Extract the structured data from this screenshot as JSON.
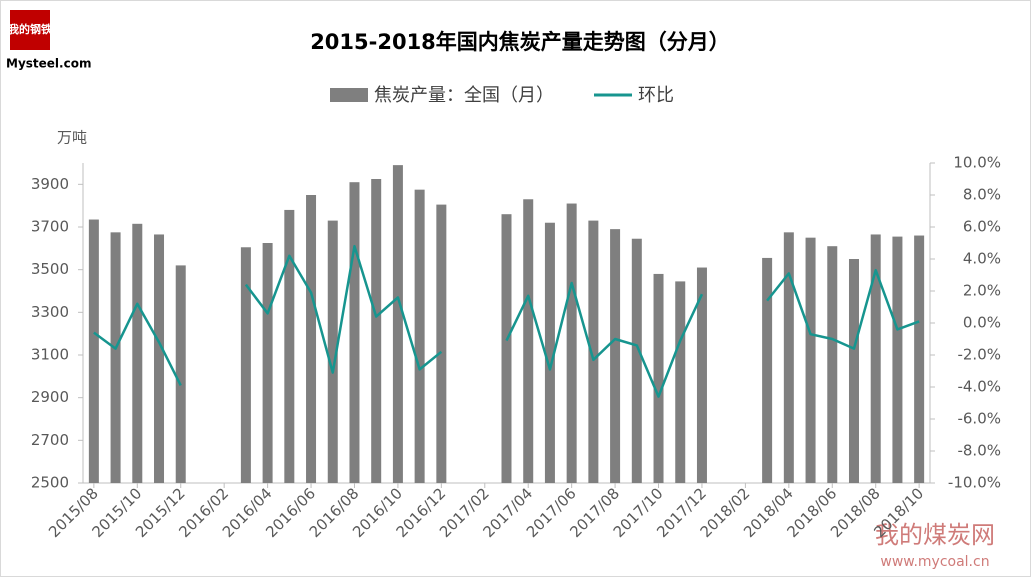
{
  "chart_data": {
    "type": "bar-line",
    "title": "2015-2018年国内焦炭产量走势图（分月）",
    "y_label": "万吨",
    "categories": [
      "2015/08",
      null,
      "2015/10",
      null,
      "2015/12",
      null,
      "2016/02",
      null,
      "2016/04",
      null,
      "2016/06",
      null,
      "2016/08",
      null,
      "2016/10",
      null,
      "2016/12",
      null,
      "2017/02",
      null,
      "2017/04",
      null,
      "2017/06",
      null,
      "2017/08",
      null,
      "2017/10",
      null,
      "2017/12",
      null,
      "2018/02",
      null,
      "2018/04",
      null,
      "2018/06",
      null,
      "2018/08",
      null,
      "2018/10"
    ],
    "series": [
      {
        "name": "焦炭产量：全国（月）",
        "type": "bar",
        "color": "#7f7f7f",
        "values": [
          3735,
          3675,
          3715,
          3665,
          3520,
          null,
          null,
          3605,
          3625,
          3780,
          3850,
          3730,
          3910,
          3925,
          3990,
          3875,
          3805,
          null,
          null,
          3760,
          3830,
          3720,
          3810,
          3730,
          3690,
          3645,
          3480,
          3445,
          3510,
          null,
          null,
          3555,
          3675,
          3650,
          3610,
          3550,
          3665,
          3655,
          3660
        ]
      },
      {
        "name": "环比",
        "type": "line",
        "axis": "y2",
        "color": "#17958f",
        "values": [
          -0.6,
          -1.6,
          1.2,
          -1.2,
          -3.9,
          null,
          null,
          2.4,
          0.6,
          4.2,
          1.9,
          -3.1,
          4.8,
          0.4,
          1.6,
          -2.9,
          -1.8,
          null,
          null,
          -1.1,
          1.7,
          -2.9,
          2.5,
          -2.3,
          -1.0,
          -1.4,
          -4.6,
          -1.1,
          1.8,
          null,
          null,
          1.4,
          3.1,
          -0.7,
          -1.0,
          -1.6,
          3.3,
          -0.4,
          0.1
        ]
      }
    ],
    "ylim": [
      2500,
      4000
    ],
    "yticks": [
      2500,
      2700,
      2900,
      3100,
      3300,
      3500,
      3700,
      3900
    ],
    "y2lim": [
      -10,
      10
    ],
    "y2ticks": [
      {
        "value": -10,
        "label": "-10.0%"
      },
      {
        "value": -8,
        "label": "-8.0%"
      },
      {
        "value": -6,
        "label": "-6.0%"
      },
      {
        "value": -4,
        "label": "-4.0%"
      },
      {
        "value": -2,
        "label": "-2.0%"
      },
      {
        "value": 0,
        "label": "0.0%"
      },
      {
        "value": 2,
        "label": "2.0%"
      },
      {
        "value": 4,
        "label": "4.0%"
      },
      {
        "value": 6,
        "label": "6.0%"
      },
      {
        "value": 8,
        "label": "8.0%"
      },
      {
        "value": 10,
        "label": "10.0%"
      }
    ],
    "legend": "top"
  },
  "branding": {
    "logo": "我的钢铁",
    "logo_site": "Mysteel.com",
    "watermark": "我的煤炭网",
    "watermark_site": "www.mycoal.cn"
  }
}
